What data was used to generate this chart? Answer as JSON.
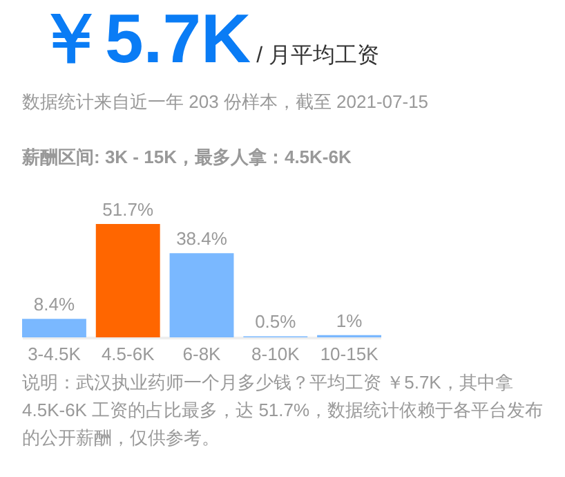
{
  "chart_data": {
    "type": "bar",
    "title": "￥5.7K",
    "subtitle": "/ 月平均工资",
    "annotations": [
      "数据统计来自近一年 203 份样本，截至 2021-07-15",
      "薪酬区间: 3K - 15K，最多人拿：4.5K-6K",
      "说明：武汉执业药师一个月多少钱？平均工资 ￥5.7K，其中拿 4.5K-6K 工资的占比最多，达 51.7%，数据统计依赖于各平台发布的公开薪酬，仅供参考。"
    ],
    "categories": [
      "3-4.5K",
      "4.5-6K",
      "6-8K",
      "8-10K",
      "10-15K"
    ],
    "values": [
      8.4,
      51.7,
      38.4,
      0.5,
      1
    ],
    "colors": [
      "#7ab8ff",
      "#ff6600",
      "#7ab8ff",
      "#7ab8ff",
      "#7ab8ff"
    ],
    "value_labels": [
      "8.4%",
      "51.7%",
      "38.4%",
      "0.5%",
      "1%"
    ]
  }
}
